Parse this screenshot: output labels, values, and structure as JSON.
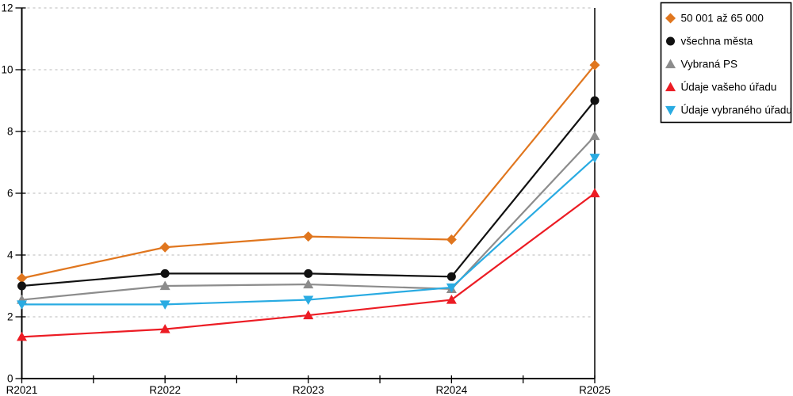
{
  "chart_data": {
    "type": "line",
    "title": "",
    "xlabel": "",
    "ylabel": "",
    "categories": [
      "R2021",
      "R2022",
      "R2023",
      "R2024",
      "R2025"
    ],
    "series": [
      {
        "name": "50 001 až 65 000",
        "color": "#E0761E",
        "marker": "diamond",
        "values": [
          3.25,
          4.25,
          4.6,
          4.5,
          10.15
        ]
      },
      {
        "name": "všechna města",
        "color": "#111111",
        "marker": "circle",
        "values": [
          3.0,
          3.4,
          3.4,
          3.3,
          9.0
        ]
      },
      {
        "name": "Vybraná PS",
        "color": "#8C8C8C",
        "marker": "triangle-up",
        "values": [
          2.55,
          3.0,
          3.05,
          2.9,
          7.85
        ]
      },
      {
        "name": "Údaje vašeho úřadu",
        "color": "#EC1C24",
        "marker": "triangle-up",
        "values": [
          1.35,
          1.6,
          2.05,
          2.55,
          6.0
        ]
      },
      {
        "name": "Údaje vybraného úřadu",
        "color": "#29ABE2",
        "marker": "triangle-down",
        "values": [
          2.4,
          2.4,
          2.55,
          2.95,
          7.15
        ]
      }
    ],
    "ylim": [
      0,
      12
    ],
    "yticks": [
      0,
      2,
      4,
      6,
      8,
      10,
      12
    ],
    "grid": "horizontal-dashed",
    "x_minor_ticks_between_categories": true,
    "legend_position": "top-right"
  },
  "colors": {
    "axis": "#000000",
    "grid": "#C6C6C6",
    "background": "#FFFFFF",
    "legend_background": "#FFFFFF",
    "legend_border": "#000000"
  }
}
